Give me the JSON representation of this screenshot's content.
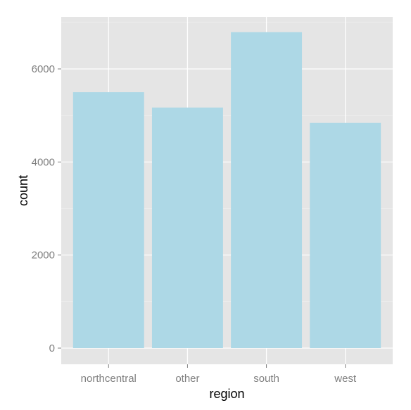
{
  "chart_data": {
    "type": "bar",
    "categories": [
      "northcentral",
      "other",
      "south",
      "west"
    ],
    "values": [
      5500,
      5170,
      6790,
      4840
    ],
    "xlabel": "region",
    "ylabel": "count",
    "ylim": [
      0,
      7000
    ],
    "yticks": [
      0,
      2000,
      4000,
      6000
    ],
    "ytick_labels": [
      "0",
      "2000",
      "4000",
      "6000"
    ],
    "grid": true,
    "legend": "none"
  },
  "colors": {
    "panel_background": "#e5e5e5",
    "grid_major": "#ffffff",
    "grid_minor": "#f2f2f2",
    "bar_fill": "#add8e6",
    "tick_label": "#7f7f7f",
    "axis_title": "#000000"
  }
}
